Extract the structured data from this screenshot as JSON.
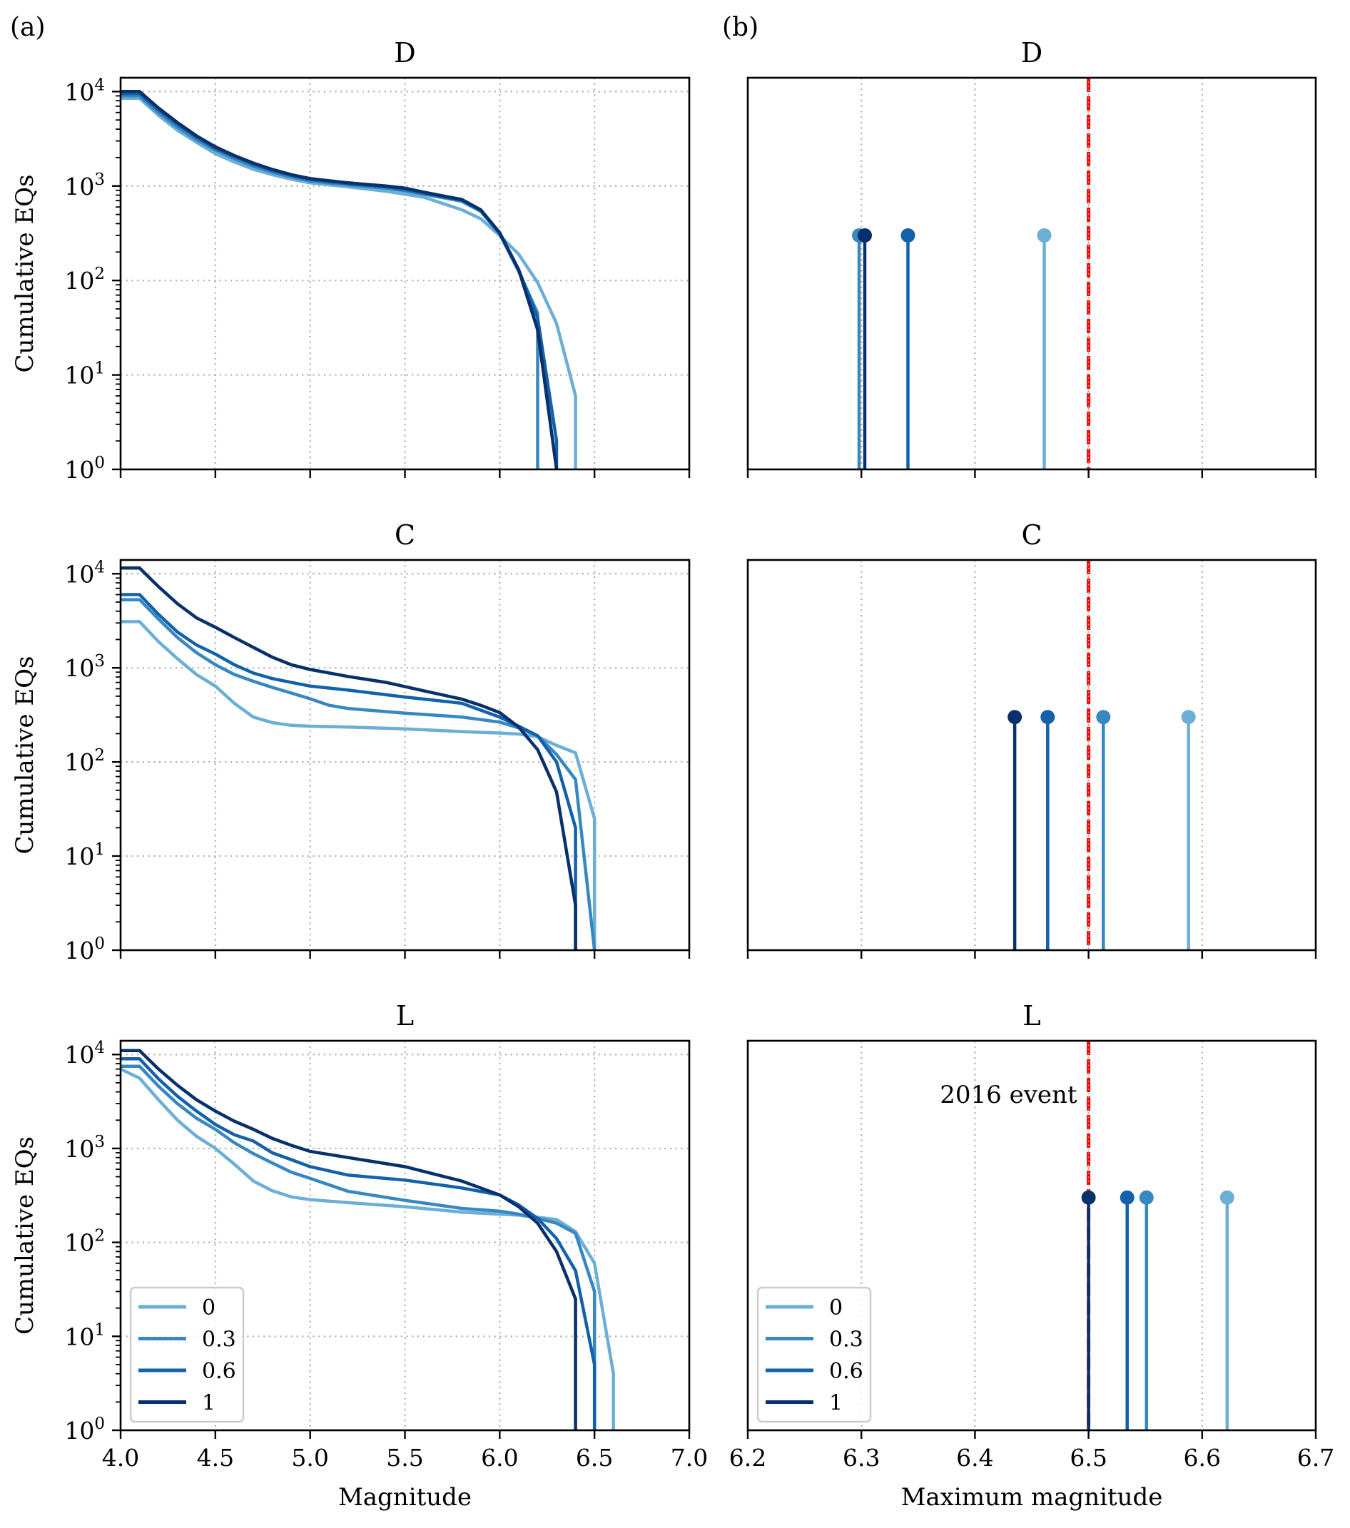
{
  "figure": {
    "panel_labels": [
      "(a)",
      "(b)"
    ],
    "legend_title": "",
    "series_keys": [
      "0",
      "0.3",
      "0.6",
      "1"
    ],
    "colors": {
      "0": "#6baed6",
      "0.3": "#3787c0",
      "0.6": "#1361a9",
      "1": "#08306b",
      "event": "#ff0000",
      "grid": "#b0b0b0"
    }
  },
  "chart_data": [
    {
      "id": "a-D",
      "type": "line",
      "title": "D",
      "panel": "(a)",
      "xlabel": "",
      "ylabel": "Cumulative EQs",
      "yscale": "log",
      "xlim": [
        4.0,
        7.0
      ],
      "ylim": [
        1,
        14000
      ],
      "xticks": [
        "4.0",
        "4.5",
        "5.0",
        "5.5",
        "6.0",
        "6.5",
        "7.0"
      ],
      "xtick_labels_shown": false,
      "yticks": [
        1,
        10,
        100,
        1000,
        10000
      ],
      "ytick_labels": [
        "10^0",
        "10^1",
        "10^2",
        "10^3",
        "10^4"
      ],
      "grid": true,
      "series": [
        {
          "name": "0",
          "x": [
            4.0,
            4.1,
            4.2,
            4.3,
            4.4,
            4.5,
            4.6,
            4.7,
            4.8,
            4.9,
            5.0,
            5.2,
            5.4,
            5.5,
            5.6,
            5.8,
            5.9,
            6.0,
            6.1,
            6.2,
            6.3,
            6.4,
            6.4
          ],
          "y": [
            8500,
            8500,
            5600,
            3900,
            2900,
            2200,
            1800,
            1500,
            1320,
            1180,
            1080,
            980,
            880,
            820,
            760,
            560,
            450,
            300,
            190,
            95,
            35,
            6,
            1
          ]
        },
        {
          "name": "0.3",
          "x": [
            4.0,
            4.1,
            4.2,
            4.3,
            4.4,
            4.5,
            4.6,
            4.7,
            4.8,
            4.9,
            5.0,
            5.2,
            5.4,
            5.5,
            5.6,
            5.8,
            5.9,
            6.0,
            6.1,
            6.2,
            6.2
          ],
          "y": [
            9000,
            9000,
            6000,
            4200,
            3100,
            2400,
            1950,
            1620,
            1400,
            1250,
            1130,
            1030,
            950,
            890,
            820,
            690,
            540,
            310,
            125,
            45,
            1
          ]
        },
        {
          "name": "0.6",
          "x": [
            4.0,
            4.1,
            4.2,
            4.3,
            4.4,
            4.5,
            4.6,
            4.7,
            4.8,
            4.9,
            5.0,
            5.2,
            5.4,
            5.5,
            5.6,
            5.8,
            5.9,
            6.0,
            6.1,
            6.2,
            6.3,
            6.3
          ],
          "y": [
            9500,
            9500,
            6400,
            4500,
            3300,
            2500,
            2050,
            1700,
            1460,
            1290,
            1170,
            1060,
            980,
            920,
            840,
            710,
            555,
            320,
            130,
            40,
            2,
            1
          ]
        },
        {
          "name": "1",
          "x": [
            4.0,
            4.1,
            4.2,
            4.3,
            4.4,
            4.5,
            4.6,
            4.7,
            4.8,
            4.9,
            5.0,
            5.2,
            5.4,
            5.5,
            5.6,
            5.8,
            5.9,
            6.0,
            6.1,
            6.2,
            6.3
          ],
          "y": [
            10000,
            10000,
            6700,
            4700,
            3400,
            2600,
            2100,
            1750,
            1500,
            1320,
            1200,
            1080,
            1000,
            950,
            860,
            720,
            560,
            320,
            130,
            30,
            1
          ]
        }
      ]
    },
    {
      "id": "b-D",
      "type": "stem",
      "title": "D",
      "panel": "(b)",
      "xlabel": "",
      "ylabel": "",
      "yscale": "log",
      "xlim": [
        6.2,
        6.7
      ],
      "ylim": [
        1,
        14000
      ],
      "xticks": [
        "6.2",
        "6.3",
        "6.4",
        "6.5",
        "6.6",
        "6.7"
      ],
      "xtick_labels_shown": false,
      "grid": true,
      "event_line": {
        "x": 6.5,
        "label": ""
      },
      "series": [
        {
          "name": "0",
          "x": 6.461,
          "y": 300
        },
        {
          "name": "0.3",
          "x": 6.298,
          "y": 300
        },
        {
          "name": "0.6",
          "x": 6.341,
          "y": 300
        },
        {
          "name": "1",
          "x": 6.303,
          "y": 300
        }
      ]
    },
    {
      "id": "a-C",
      "type": "line",
      "title": "C",
      "panel": "(a)",
      "xlabel": "",
      "ylabel": "Cumulative EQs",
      "yscale": "log",
      "xlim": [
        4.0,
        7.0
      ],
      "ylim": [
        1,
        14000
      ],
      "xticks": [
        "4.0",
        "4.5",
        "5.0",
        "5.5",
        "6.0",
        "6.5",
        "7.0"
      ],
      "xtick_labels_shown": false,
      "yticks": [
        1,
        10,
        100,
        1000,
        10000
      ],
      "ytick_labels": [
        "10^0",
        "10^1",
        "10^2",
        "10^3",
        "10^4"
      ],
      "grid": true,
      "series": [
        {
          "name": "0",
          "x": [
            4.0,
            4.1,
            4.2,
            4.3,
            4.4,
            4.5,
            4.6,
            4.7,
            4.8,
            4.9,
            5.0,
            5.2,
            5.5,
            5.8,
            6.0,
            6.1,
            6.2,
            6.3,
            6.4,
            6.5,
            6.5
          ],
          "y": [
            3100,
            3100,
            1900,
            1250,
            850,
            640,
            420,
            300,
            262,
            245,
            240,
            235,
            225,
            210,
            203,
            198,
            185,
            150,
            125,
            25,
            1
          ]
        },
        {
          "name": "0.3",
          "x": [
            4.0,
            4.1,
            4.2,
            4.3,
            4.4,
            4.5,
            4.6,
            4.7,
            4.8,
            4.9,
            5.0,
            5.1,
            5.2,
            5.5,
            5.8,
            6.0,
            6.1,
            6.2,
            6.3,
            6.4,
            6.5
          ],
          "y": [
            5300,
            5300,
            3300,
            2100,
            1450,
            1080,
            850,
            720,
            620,
            540,
            470,
            400,
            370,
            330,
            300,
            265,
            230,
            190,
            120,
            65,
            1
          ]
        },
        {
          "name": "0.6",
          "x": [
            4.0,
            4.1,
            4.2,
            4.3,
            4.4,
            4.5,
            4.6,
            4.7,
            4.8,
            4.9,
            5.0,
            5.2,
            5.5,
            5.8,
            6.0,
            6.1,
            6.2,
            6.3,
            6.4,
            6.4
          ],
          "y": [
            6000,
            6000,
            3700,
            2400,
            1750,
            1400,
            1080,
            880,
            770,
            700,
            640,
            580,
            490,
            420,
            300,
            240,
            190,
            100,
            20,
            1
          ]
        },
        {
          "name": "1",
          "x": [
            4.0,
            4.1,
            4.2,
            4.3,
            4.4,
            4.5,
            4.6,
            4.7,
            4.8,
            4.9,
            5.0,
            5.2,
            5.4,
            5.6,
            5.8,
            5.9,
            6.0,
            6.1,
            6.2,
            6.3,
            6.4,
            6.4
          ],
          "y": [
            11500,
            11500,
            7300,
            4800,
            3400,
            2700,
            2100,
            1650,
            1300,
            1080,
            960,
            810,
            700,
            570,
            465,
            400,
            335,
            235,
            135,
            48,
            3,
            1
          ]
        }
      ]
    },
    {
      "id": "b-C",
      "type": "stem",
      "title": "C",
      "panel": "(b)",
      "xlabel": "",
      "ylabel": "",
      "yscale": "log",
      "xlim": [
        6.2,
        6.7
      ],
      "ylim": [
        1,
        14000
      ],
      "xticks": [
        "6.2",
        "6.3",
        "6.4",
        "6.5",
        "6.6",
        "6.7"
      ],
      "xtick_labels_shown": false,
      "grid": true,
      "event_line": {
        "x": 6.5,
        "label": ""
      },
      "series": [
        {
          "name": "0",
          "x": 6.588,
          "y": 300
        },
        {
          "name": "0.3",
          "x": 6.513,
          "y": 300
        },
        {
          "name": "0.6",
          "x": 6.464,
          "y": 300
        },
        {
          "name": "1",
          "x": 6.435,
          "y": 300
        }
      ]
    },
    {
      "id": "a-L",
      "type": "line",
      "title": "L",
      "panel": "(a)",
      "xlabel": "Magnitude",
      "ylabel": "Cumulative EQs",
      "yscale": "log",
      "xlim": [
        4.0,
        7.0
      ],
      "ylim": [
        1,
        14000
      ],
      "xticks": [
        "4.0",
        "4.5",
        "5.0",
        "5.5",
        "6.0",
        "6.5",
        "7.0"
      ],
      "xtick_labels_shown": true,
      "yticks": [
        1,
        10,
        100,
        1000,
        10000
      ],
      "ytick_labels": [
        "10^0",
        "10^1",
        "10^2",
        "10^3",
        "10^4"
      ],
      "grid": true,
      "legend": {
        "entries": [
          "0",
          "0.3",
          "0.6",
          "1"
        ],
        "loc": "lower-left"
      },
      "series": [
        {
          "name": "0",
          "x": [
            4.0,
            4.1,
            4.2,
            4.3,
            4.4,
            4.5,
            4.6,
            4.7,
            4.8,
            4.9,
            5.0,
            5.2,
            5.5,
            5.8,
            6.0,
            6.1,
            6.2,
            6.3,
            6.4,
            6.5,
            6.6,
            6.6
          ],
          "y": [
            7000,
            5600,
            3300,
            2000,
            1350,
            1000,
            680,
            450,
            355,
            305,
            285,
            265,
            240,
            210,
            200,
            195,
            185,
            175,
            130,
            60,
            4,
            1
          ]
        },
        {
          "name": "0.3",
          "x": [
            4.0,
            4.1,
            4.2,
            4.3,
            4.4,
            4.5,
            4.6,
            4.7,
            4.8,
            4.9,
            5.0,
            5.2,
            5.5,
            5.8,
            6.0,
            6.1,
            6.2,
            6.3,
            6.4,
            6.5,
            6.5
          ],
          "y": [
            7500,
            7500,
            4600,
            3000,
            2100,
            1600,
            1150,
            880,
            700,
            560,
            480,
            350,
            280,
            230,
            215,
            200,
            180,
            160,
            125,
            30,
            1
          ]
        },
        {
          "name": "0.6",
          "x": [
            4.0,
            4.1,
            4.2,
            4.3,
            4.4,
            4.5,
            4.6,
            4.7,
            4.8,
            4.9,
            5.0,
            5.2,
            5.5,
            5.8,
            6.0,
            6.1,
            6.2,
            6.3,
            6.4,
            6.5,
            6.5
          ],
          "y": [
            9000,
            9000,
            5500,
            3600,
            2500,
            1800,
            1400,
            1200,
            900,
            760,
            640,
            520,
            460,
            380,
            320,
            250,
            180,
            110,
            50,
            5,
            1
          ]
        },
        {
          "name": "1",
          "x": [
            4.0,
            4.1,
            4.2,
            4.3,
            4.4,
            4.5,
            4.6,
            4.7,
            4.8,
            4.9,
            5.0,
            5.2,
            5.5,
            5.8,
            6.0,
            6.1,
            6.2,
            6.3,
            6.4,
            6.4
          ],
          "y": [
            11000,
            11000,
            7000,
            4700,
            3300,
            2500,
            1950,
            1600,
            1280,
            1080,
            930,
            800,
            640,
            450,
            320,
            240,
            160,
            80,
            25,
            1
          ]
        }
      ]
    },
    {
      "id": "b-L",
      "type": "stem",
      "title": "L",
      "panel": "(b)",
      "xlabel": "Maximum magnitude",
      "ylabel": "",
      "yscale": "log",
      "xlim": [
        6.2,
        6.7
      ],
      "ylim": [
        1,
        14000
      ],
      "xticks": [
        "6.2",
        "6.3",
        "6.4",
        "6.5",
        "6.6",
        "6.7"
      ],
      "xtick_labels_shown": true,
      "grid": true,
      "event_line": {
        "x": 6.5,
        "label": "2016 event"
      },
      "legend": {
        "entries": [
          "0",
          "0.3",
          "0.6",
          "1"
        ],
        "loc": "lower-left"
      },
      "series": [
        {
          "name": "0",
          "x": 6.622,
          "y": 300
        },
        {
          "name": "0.3",
          "x": 6.551,
          "y": 300
        },
        {
          "name": "0.6",
          "x": 6.534,
          "y": 300
        },
        {
          "name": "1",
          "x": 6.5,
          "y": 300
        }
      ]
    }
  ]
}
